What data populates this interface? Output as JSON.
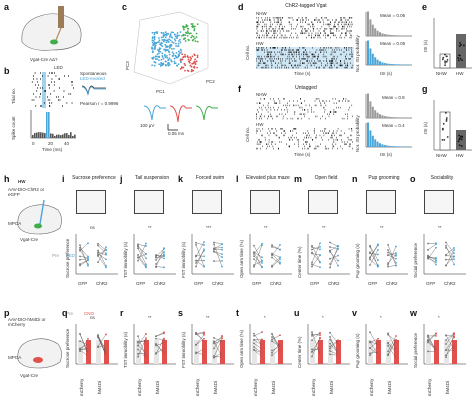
{
  "colors": {
    "blue": "#4aa6d8",
    "red": "#e0504c",
    "green": "#3fae49",
    "grey": "#9a9a9a",
    "dark": "#333333",
    "purple": "#7b5ea7",
    "pink_band": "#f3c7c7"
  },
  "panel_letters": [
    "a",
    "b",
    "c",
    "d",
    "e",
    "f",
    "g",
    "h",
    "i",
    "j",
    "k",
    "l",
    "m",
    "n",
    "o",
    "p",
    "q",
    "r",
    "s",
    "t",
    "u",
    "v",
    "w"
  ],
  "panel_a": {
    "label": "Vgat-Cre AΔ? "
  },
  "panel_b": {
    "led_label": "LED",
    "legend_spontaneous": "Spontaneous",
    "legend_led": "LED-evoked",
    "pearson": "Pearson r = 0.9996",
    "y_top": "Trial no.",
    "y_bottom": "Spike count",
    "x_label": "Time (ms)",
    "x_ticks": [
      "0",
      "20",
      "40"
    ],
    "y_bottom_ticks": [
      "0",
      "50"
    ]
  },
  "panel_c": {
    "axis_pc1": "PC1",
    "axis_pc2": "PC2",
    "axis_pc3": "PC3",
    "scale_v": "100 μV",
    "scale_t": "0.05 ms"
  },
  "panel_d": {
    "title": "ChR2-tagged Vgat",
    "row_nhw": "NHW",
    "row_hw": "HW",
    "y_label": "Cell no.",
    "x_label": "Time (s)",
    "hist_y": "Nor. ISI probability",
    "hist_x": "ISI (s)",
    "mean_nhw": "Mean = 0.06",
    "mean_hw": "Mean = 0.05"
  },
  "panel_f": {
    "title": "Untagged",
    "row_nhw": "NHW",
    "row_hw": "HW",
    "y_label": "Cell no.",
    "x_label": "Time (s)",
    "hist_y": "Nor. ISI probability",
    "hist_x": "ISI (s)",
    "mean_nhw": "Mean = 0.8",
    "mean_hw": "Mean = 0.4"
  },
  "panel_e": {
    "y_label": "ISI (s)",
    "x_ticks": [
      "NHW",
      "HW"
    ],
    "sig": "*"
  },
  "panel_g": {
    "y_label": "ISI (s)",
    "x_ticks": [
      "NHW",
      "HW"
    ],
    "sig": "***"
  },
  "panel_h": {
    "title": "HW",
    "virus": "AAV-DIO-ChR2 or eGFP",
    "target": "MPOA",
    "mouse": "Vgat-Cre"
  },
  "panel_p": {
    "virus": "AAV-DIO-hM4Di or mCherry",
    "target": "MPOA",
    "mouse": "Vgat-Cre"
  },
  "behaviours": [
    {
      "letter": "i",
      "title": "Sucrose preference",
      "y_label": "Sucrose preference",
      "sig": "ns"
    },
    {
      "letter": "j",
      "title": "Tail suspension",
      "y_label": "TST immobility (s)",
      "sig": "**"
    },
    {
      "letter": "k",
      "title": "Forced swim",
      "y_label": "FST immobility (s)",
      "sig": "***"
    },
    {
      "letter": "l",
      "title": "Elevated plus maze",
      "y_label": "Open arm time (%)",
      "sig": "**"
    },
    {
      "letter": "m",
      "title": "Open field",
      "y_label": "Center time (%)",
      "sig": "**"
    },
    {
      "letter": "n",
      "title": "Pup grooming",
      "y_label": "Pup grooming (s)",
      "sig": "**"
    },
    {
      "letter": "o",
      "title": "Sociability",
      "y_label": "Social preference",
      "sig": "**"
    }
  ],
  "row2_groups": [
    "GFP",
    "ChR2"
  ],
  "row2_legend": {
    "pre": "Pre",
    "led": "LED"
  },
  "row3_groups": [
    "mCherry",
    "hM4Di"
  ],
  "row3_legend": {
    "pre": "Pre",
    "cno": "CNO"
  },
  "row3_letters": [
    {
      "letter": "q",
      "y_label": "Sucrose preference",
      "sig": "ns"
    },
    {
      "letter": "r",
      "y_label": "TST immobility (s)",
      "sig": "**"
    },
    {
      "letter": "s",
      "y_label": "FST immobility (s)",
      "sig": "**"
    },
    {
      "letter": "t",
      "y_label": "Open arm time (%)",
      "sig": "*"
    },
    {
      "letter": "u",
      "y_label": "Center time (%)",
      "sig": "*"
    },
    {
      "letter": "v",
      "y_label": "Pup grooming (s)",
      "sig": "*"
    },
    {
      "letter": "w",
      "y_label": "Social preference",
      "sig": "*"
    }
  ]
}
